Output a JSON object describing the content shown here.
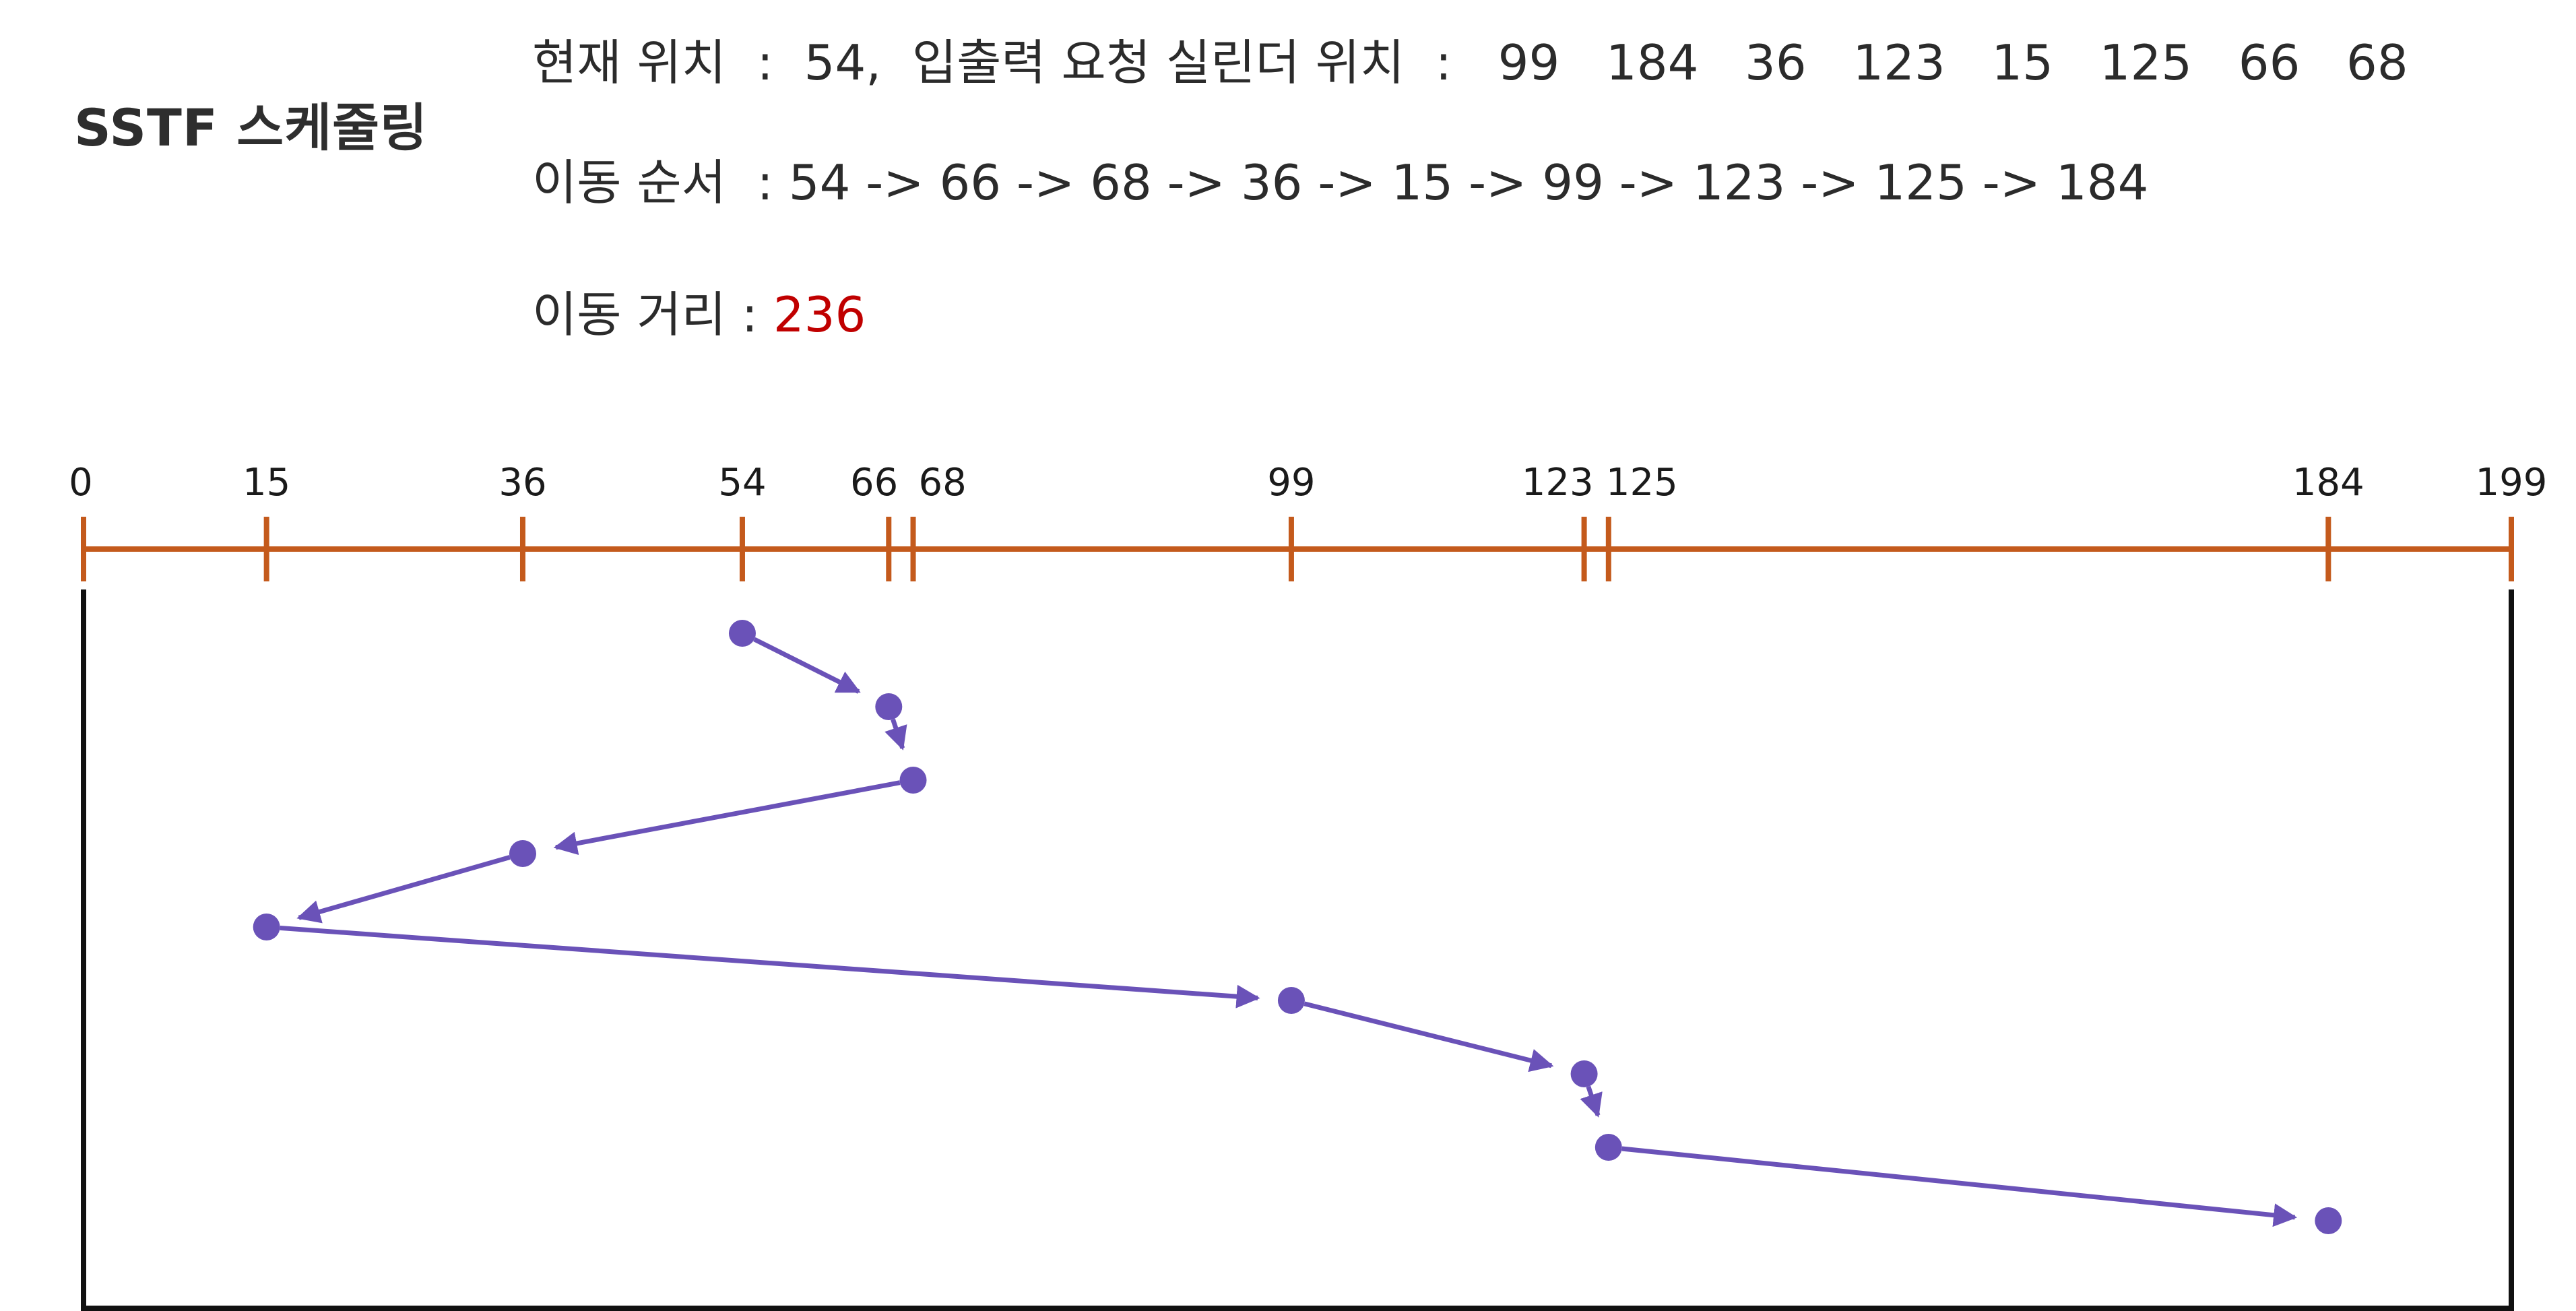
{
  "title": "SSTF 스케줄링",
  "info": {
    "current_position": "현재 위치  :  54,  입출력 요청 실린더 위치  :   99   184   36   123   15   125   66   68",
    "order": "이동 순서  : 54 -> 66 -> 68 -> 36 -> 15 -> 99 -> 123 -> 125 -> 184",
    "distance_label": "이동 거리 : ",
    "distance_value": "236"
  },
  "colors": {
    "axis": "#c45a1c",
    "path": "#6a52b8",
    "frame": "#111111",
    "distance": "#c00000"
  },
  "chart_data": {
    "type": "line",
    "axis_min": 0,
    "axis_max": 199,
    "tick_labels": [
      "0",
      "15",
      "36",
      "54",
      "66",
      "68",
      "99",
      "123",
      "125",
      "184",
      "199"
    ],
    "tick_values": [
      0,
      15,
      36,
      54,
      66,
      68,
      99,
      123,
      125,
      184,
      199
    ],
    "sequence": [
      54,
      66,
      68,
      36,
      15,
      99,
      123,
      125,
      184
    ]
  }
}
